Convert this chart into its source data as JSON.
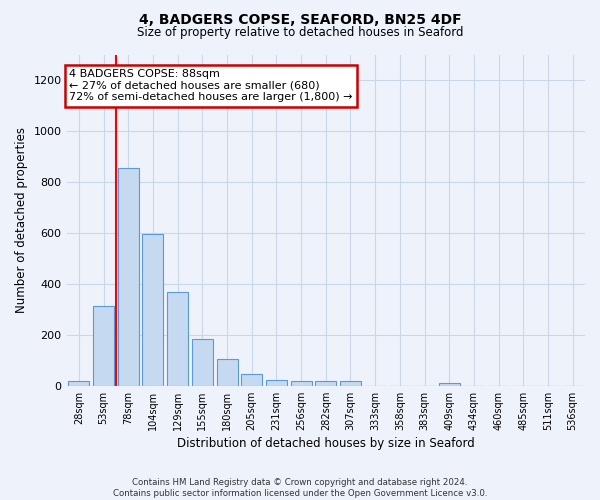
{
  "title_line1": "4, BADGERS COPSE, SEAFORD, BN25 4DF",
  "title_line2": "Size of property relative to detached houses in Seaford",
  "xlabel": "Distribution of detached houses by size in Seaford",
  "ylabel": "Number of detached properties",
  "bar_labels": [
    "28sqm",
    "53sqm",
    "78sqm",
    "104sqm",
    "129sqm",
    "155sqm",
    "180sqm",
    "205sqm",
    "231sqm",
    "256sqm",
    "282sqm",
    "307sqm",
    "333sqm",
    "358sqm",
    "383sqm",
    "409sqm",
    "434sqm",
    "460sqm",
    "485sqm",
    "511sqm",
    "536sqm"
  ],
  "bar_values": [
    18,
    315,
    855,
    595,
    370,
    185,
    105,
    47,
    22,
    18,
    18,
    18,
    0,
    0,
    0,
    12,
    0,
    0,
    0,
    0,
    0
  ],
  "bar_color": "#c5d9f0",
  "bar_edgecolor": "#5b9bd5",
  "red_line_x": 1.5,
  "ylim": [
    0,
    1300
  ],
  "yticks": [
    0,
    200,
    400,
    600,
    800,
    1000,
    1200
  ],
  "annotation_text": "4 BADGERS COPSE: 88sqm\n← 27% of detached houses are smaller (680)\n72% of semi-detached houses are larger (1,800) →",
  "annotation_box_color": "#ffffff",
  "annotation_box_edgecolor": "#cc0000",
  "grid_color": "#c8d8e8",
  "background_color": "#eef2fa",
  "footer_line1": "Contains HM Land Registry data © Crown copyright and database right 2024.",
  "footer_line2": "Contains public sector information licensed under the Open Government Licence v3.0."
}
